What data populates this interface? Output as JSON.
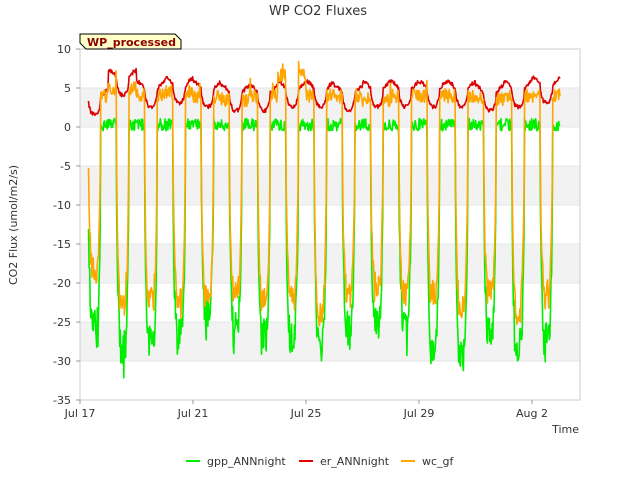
{
  "chart_data": {
    "type": "line",
    "title": "WP CO2 Fluxes",
    "tag": "WP_processed",
    "xlabel": "Time",
    "ylabel": "CO2 Flux (umol/m2/s)",
    "xlim": [
      0,
      17.7
    ],
    "ylim": [
      -35,
      10
    ],
    "yticks": [
      10,
      5,
      0,
      -5,
      -10,
      -15,
      -20,
      -25,
      -30,
      -35
    ],
    "xticks": [
      {
        "label": "Jul 17",
        "day": 0
      },
      {
        "label": "Jul 21",
        "day": 4
      },
      {
        "label": "Jul 25",
        "day": 8
      },
      {
        "label": "Jul 29",
        "day": 12
      },
      {
        "label": "Aug 2",
        "day": 16
      }
    ],
    "data_range_days": [
      0.3,
      17.0
    ],
    "daily_minimums": {
      "gpp_ANNnight": [
        -29,
        -31,
        -31,
        -30,
        -27,
        -29,
        -30,
        -30,
        -31,
        -29,
        -28,
        -28,
        -31,
        -32,
        -29,
        -31,
        -30
      ],
      "wc_gf": [
        -21,
        -25,
        -25,
        -25,
        -24,
        -24,
        -25,
        -24,
        -26,
        -24,
        -23,
        -24,
        -24,
        -26,
        -24,
        -26,
        -24
      ]
    },
    "daily_night_levels": {
      "er_ANNnight": [
        4,
        6.5,
        5,
        5.5,
        5,
        4.5,
        4.5,
        5,
        5,
        4.5,
        5,
        5,
        5,
        5,
        4.5,
        5,
        5.5
      ],
      "wc_gf": [
        4,
        5,
        4,
        4.5,
        4,
        3.5,
        4,
        6.5,
        4,
        4,
        3.5,
        4,
        4,
        4,
        3.5,
        4,
        4
      ]
    },
    "series": [
      {
        "name": "gpp_ANNnight",
        "color": "#00ee00"
      },
      {
        "name": "er_ANNnight",
        "color": "#dd0000"
      },
      {
        "name": "wc_gf",
        "color": "#ffa500"
      }
    ]
  }
}
